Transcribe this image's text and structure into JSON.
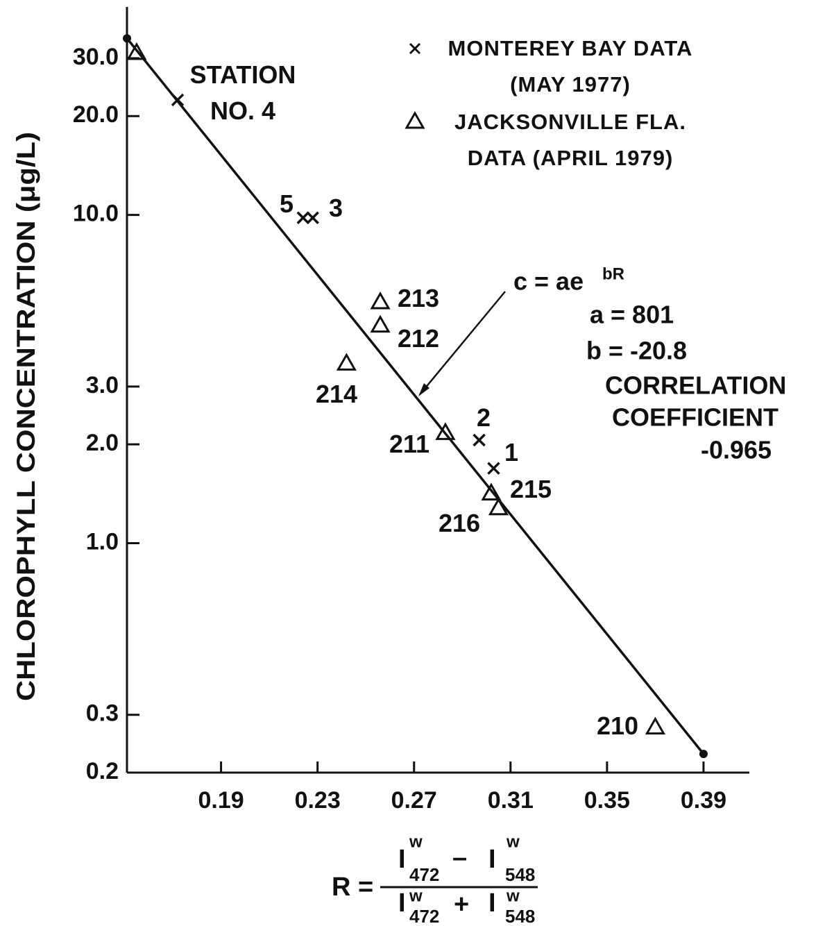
{
  "chart_data": {
    "type": "scatter",
    "y_label": "CHLOROPHYLL CONCENTRATION (μg/L)",
    "x_label": {
      "lhs": "R =",
      "symbol": "I",
      "superscript": "w",
      "sub1": "472",
      "sub2": "548",
      "minus": "–",
      "plus": "+"
    },
    "y_scale": "log",
    "xlim": [
      0.151,
      0.409
    ],
    "ylim": [
      0.2,
      43
    ],
    "xticks": [
      0.19,
      0.23,
      0.27,
      0.31,
      0.35,
      0.39
    ],
    "yticks": [
      0.2,
      0.3,
      {
        "value": 1,
        "label": "1.0"
      },
      {
        "value": 2,
        "label": "2.0"
      },
      {
        "value": 3,
        "label": "3.0"
      },
      {
        "value": 10,
        "label": "10.0"
      },
      {
        "value": 20,
        "label": "20.0"
      },
      {
        "value": 30,
        "label": "30.0"
      }
    ],
    "series": [
      {
        "name": "MONTEREY BAY DATA (MAY 1977)",
        "marker": "x",
        "color": "#111111",
        "x": [
          0.172,
          0.224,
          0.228,
          0.297,
          0.303
        ],
        "values": [
          22.4,
          9.8,
          9.8,
          2.06,
          1.69
        ],
        "labels": [
          "STATION NO. 4",
          "5",
          "3",
          "2",
          "1"
        ]
      },
      {
        "name": "JACKSONVILLE FLA. DATA (APRIL 1979)",
        "marker": "triangle",
        "color": "#111111",
        "x": [
          0.155,
          0.256,
          0.256,
          0.242,
          0.283,
          0.302,
          0.305,
          0.37
        ],
        "values": [
          31.2,
          5.43,
          4.61,
          3.53,
          2.17,
          1.42,
          1.28,
          0.275
        ],
        "labels": [
          null,
          "213",
          "212",
          "214",
          "211",
          "215",
          "216",
          "210"
        ]
      }
    ],
    "fit_line": {
      "x": [
        0.151,
        0.39
      ],
      "y": [
        34.5,
        0.228
      ],
      "color": "#111111"
    },
    "equation": {
      "base": "c = ae",
      "exponent": "bR"
    },
    "annotations": [
      "a = 801",
      "b = -20.8",
      "CORRELATION",
      "COEFFICIENT",
      "-0.965"
    ]
  }
}
